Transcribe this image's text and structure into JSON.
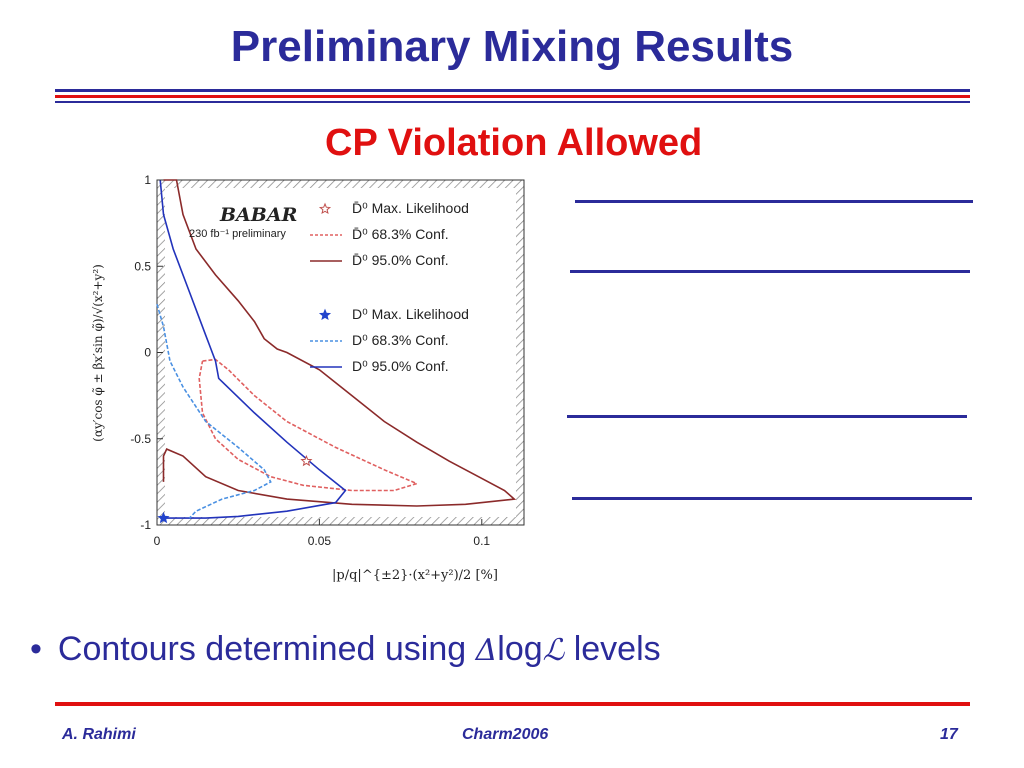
{
  "slide": {
    "title": "Preliminary Mixing Results",
    "subtitle": "CP Violation Allowed",
    "bullet": {
      "marker": "•",
      "text_before": "Contours determined using ",
      "delta_symbol": "Δ",
      "log_text": "log",
      "L_symbol": "ℒ",
      "text_after": " levels"
    },
    "footer": {
      "author": "A. Rahimi",
      "conference": "Charm2006",
      "page_number": "17"
    },
    "colors": {
      "title": "#2b2b9a",
      "accent": "#e01010"
    }
  },
  "chart_data": {
    "type": "line",
    "logo": "BABAR",
    "annotation": "230 fb⁻¹ preliminary",
    "xlabel": "|p/q|^{±2}·(x²+y²)/2 [%]",
    "ylabel": "(αy′cos φ̃ ± βx′sin φ̃)/√(x²+y²)",
    "xlim": [
      0,
      0.113
    ],
    "ylim": [
      -1,
      1
    ],
    "x_ticks": [
      "0",
      "0.05",
      "0.1"
    ],
    "y_ticks": [
      "1",
      "0.5",
      "0",
      "-0.5",
      "-1"
    ],
    "legend": [
      {
        "label": "D̄⁰ Max. Likelihood",
        "style": "star-open",
        "color": "#c0504d"
      },
      {
        "label": "D̄⁰ 68.3% Conf.",
        "style": "dashed",
        "color": "#e06060"
      },
      {
        "label": "D̄⁰ 95.0% Conf.",
        "style": "solid",
        "color": "#8b2a2a"
      },
      {
        "label": "D⁰ Max. Likelihood",
        "style": "star-filled",
        "color": "#2244cc"
      },
      {
        "label": "D⁰ 68.3% Conf.",
        "style": "dashed",
        "color": "#4a90e2"
      },
      {
        "label": "D⁰ 95.0% Conf.",
        "style": "solid",
        "color": "#2233bb"
      }
    ],
    "series": [
      {
        "name": "D̄⁰ 95.0% Conf.",
        "color": "#8b2a2a",
        "dash": "",
        "points": [
          [
            0.002,
            1
          ],
          [
            0.006,
            1
          ],
          [
            0.008,
            0.8
          ],
          [
            0.012,
            0.6
          ],
          [
            0.018,
            0.45
          ],
          [
            0.025,
            0.3
          ],
          [
            0.03,
            0.18
          ],
          [
            0.033,
            0.08
          ],
          [
            0.035,
            0.05
          ],
          [
            0.037,
            0.02
          ],
          [
            0.04,
            0.0
          ],
          [
            0.05,
            -0.1
          ],
          [
            0.06,
            -0.25
          ],
          [
            0.07,
            -0.4
          ],
          [
            0.08,
            -0.52
          ],
          [
            0.09,
            -0.63
          ],
          [
            0.1,
            -0.73
          ],
          [
            0.107,
            -0.8
          ],
          [
            0.11,
            -0.85
          ],
          [
            0.095,
            -0.88
          ],
          [
            0.08,
            -0.89
          ],
          [
            0.06,
            -0.88
          ],
          [
            0.04,
            -0.85
          ],
          [
            0.025,
            -0.8
          ],
          [
            0.015,
            -0.72
          ],
          [
            0.008,
            -0.6
          ],
          [
            0.003,
            -0.56
          ],
          [
            0.002,
            -0.6
          ],
          [
            0.002,
            -0.75
          ]
        ]
      },
      {
        "name": "D̄⁰ 68.3% Conf.",
        "color": "#e06060",
        "dash": "4,2",
        "points": [
          [
            0.014,
            -0.05
          ],
          [
            0.018,
            -0.04
          ],
          [
            0.022,
            -0.1
          ],
          [
            0.03,
            -0.25
          ],
          [
            0.04,
            -0.4
          ],
          [
            0.055,
            -0.55
          ],
          [
            0.07,
            -0.68
          ],
          [
            0.08,
            -0.76
          ],
          [
            0.073,
            -0.8
          ],
          [
            0.06,
            -0.8
          ],
          [
            0.045,
            -0.77
          ],
          [
            0.035,
            -0.72
          ],
          [
            0.025,
            -0.62
          ],
          [
            0.018,
            -0.5
          ],
          [
            0.014,
            -0.35
          ],
          [
            0.013,
            -0.15
          ],
          [
            0.014,
            -0.05
          ]
        ]
      },
      {
        "name": "D⁰ 95.0% Conf.",
        "color": "#2233bb",
        "dash": "",
        "points": [
          [
            0.001,
            1
          ],
          [
            0.002,
            0.8
          ],
          [
            0.005,
            0.6
          ],
          [
            0.01,
            0.35
          ],
          [
            0.015,
            0.1
          ],
          [
            0.016,
            0.05
          ],
          [
            0.018,
            -0.05
          ],
          [
            0.019,
            -0.15
          ],
          [
            0.03,
            -0.35
          ],
          [
            0.04,
            -0.52
          ],
          [
            0.05,
            -0.68
          ],
          [
            0.058,
            -0.8
          ],
          [
            0.055,
            -0.87
          ],
          [
            0.04,
            -0.92
          ],
          [
            0.025,
            -0.95
          ],
          [
            0.015,
            -0.96
          ],
          [
            0.001,
            -0.96
          ]
        ]
      },
      {
        "name": "D⁰ 68.3% Conf.",
        "color": "#4a90e2",
        "dash": "4,2",
        "points": [
          [
            0.0,
            0.28
          ],
          [
            0.002,
            0.15
          ],
          [
            0.004,
            -0.05
          ],
          [
            0.008,
            -0.2
          ],
          [
            0.015,
            -0.4
          ],
          [
            0.025,
            -0.55
          ],
          [
            0.033,
            -0.68
          ],
          [
            0.035,
            -0.75
          ],
          [
            0.03,
            -0.8
          ],
          [
            0.02,
            -0.85
          ],
          [
            0.012,
            -0.92
          ],
          [
            0.01,
            -0.96
          ]
        ]
      }
    ],
    "markers": [
      {
        "name": "D̄⁰ Max. Likelihood",
        "x": 0.046,
        "y": -0.63,
        "style": "star-open",
        "color": "#c0504d"
      },
      {
        "name": "D⁰ Max. Likelihood",
        "x": 0.002,
        "y": -0.96,
        "style": "star-filled",
        "color": "#2244cc"
      }
    ],
    "grid": false,
    "legend_position": "top-right",
    "frame": "hatched"
  }
}
